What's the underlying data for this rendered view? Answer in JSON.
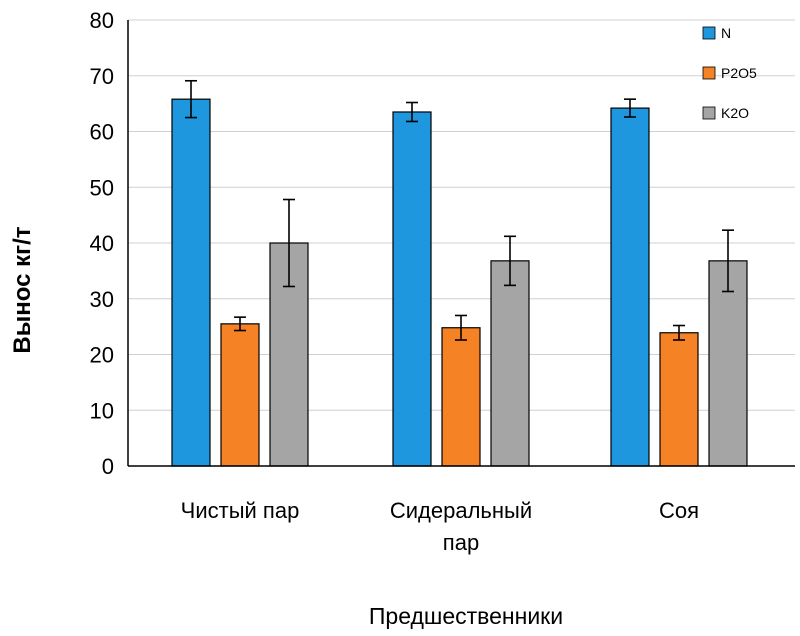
{
  "chart_data": {
    "type": "bar",
    "title": "",
    "ylabel": "Вынос кг/т",
    "xlabel": "Предшественники",
    "ylim": [
      0,
      80
    ],
    "yticks": [
      0,
      10,
      20,
      30,
      40,
      50,
      60,
      70,
      80
    ],
    "grid": true,
    "legend_position": "top-right",
    "categories": [
      [
        "Чистый пар"
      ],
      [
        "Сидеральный",
        "пар"
      ],
      [
        "Соя"
      ]
    ],
    "series": [
      {
        "name": "N",
        "color": "#1f97de",
        "values": [
          65.8,
          63.5,
          64.2
        ],
        "errors": [
          3.3,
          1.7,
          1.6
        ]
      },
      {
        "name": "P2O5",
        "color": "#f58225",
        "values": [
          25.5,
          24.8,
          23.9
        ],
        "errors": [
          1.2,
          2.2,
          1.3
        ]
      },
      {
        "name": "K2O",
        "color": "#a5a5a5",
        "values": [
          40.0,
          36.8,
          36.8
        ],
        "errors": [
          7.8,
          4.4,
          5.5
        ]
      }
    ]
  }
}
